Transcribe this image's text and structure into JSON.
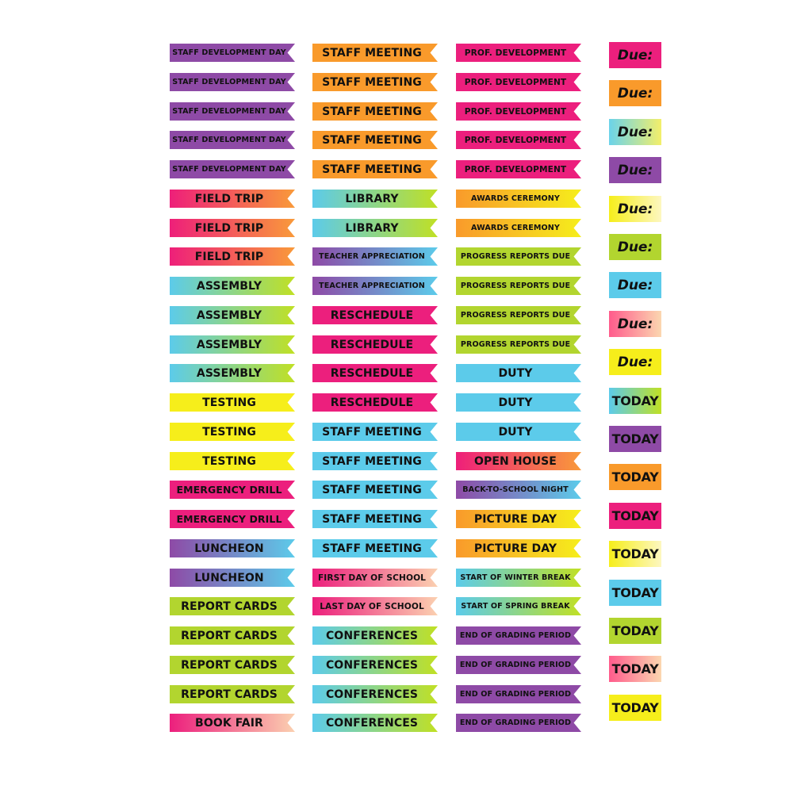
{
  "palette": {
    "purple": "#8e4aa6",
    "orange": "#f99a2b",
    "magenta": "#ec1f7d",
    "cyan": "#5ccbea",
    "yellow": "#f6ee1b",
    "lime": "#b2d52f",
    "pink_orange": "linear-gradient(90deg,#ee1f7a,#f99a3a)",
    "cyan_lime": "linear-gradient(90deg,#5ccbea,#c0e024)",
    "purple_cyan": "linear-gradient(90deg,#8e4aa6,#5ccbea)",
    "orange_yellow": "linear-gradient(90deg,#f99a2b,#f6ee1b)",
    "yellow_white": "linear-gradient(90deg,#f6ee1b,#fdf7c0)",
    "magenta_peach": "linear-gradient(90deg,#ec1f7d,#fbd0b0)",
    "cyan_peach": "linear-gradient(90deg,#5ccbea,#f9d7b5)",
    "lime_cyan": "linear-gradient(90deg,#b2d52f,#7fd8ec)",
    "teal_pink": "linear-gradient(90deg,#5ccbea,#ff5b8c)",
    "purple_white": "linear-gradient(90deg,#8e4aa6,#d9c8e6)",
    "pink_peach_tag": "linear-gradient(90deg,#ff5b8c,#fbd7b0)",
    "cyan_yellow_tag": "linear-gradient(90deg,#6bd3ea,#f3ef6a)"
  },
  "columns": [
    {
      "items": [
        {
          "label": "STAFF DEVELOPMENT DAY",
          "fill": "purple",
          "size": "xs"
        },
        {
          "label": "STAFF DEVELOPMENT DAY",
          "fill": "purple",
          "size": "xs"
        },
        {
          "label": "STAFF DEVELOPMENT DAY",
          "fill": "purple",
          "size": "xs"
        },
        {
          "label": "STAFF DEVELOPMENT DAY",
          "fill": "purple",
          "size": "xs"
        },
        {
          "label": "STAFF DEVELOPMENT DAY",
          "fill": "purple",
          "size": "xs"
        },
        {
          "label": "FIELD TRIP",
          "fill": "pink_orange",
          "size": "l"
        },
        {
          "label": "FIELD TRIP",
          "fill": "pink_orange",
          "size": "l"
        },
        {
          "label": "FIELD TRIP",
          "fill": "pink_orange",
          "size": "l"
        },
        {
          "label": "ASSEMBLY",
          "fill": "cyan_lime",
          "size": "l"
        },
        {
          "label": "ASSEMBLY",
          "fill": "cyan_lime",
          "size": "l"
        },
        {
          "label": "ASSEMBLY",
          "fill": "cyan_lime",
          "size": "l"
        },
        {
          "label": "ASSEMBLY",
          "fill": "cyan_lime",
          "size": "l"
        },
        {
          "label": "TESTING",
          "fill": "yellow",
          "size": "l"
        },
        {
          "label": "TESTING",
          "fill": "yellow",
          "size": "l"
        },
        {
          "label": "TESTING",
          "fill": "yellow",
          "size": "l"
        },
        {
          "label": "EMERGENCY DRILL",
          "fill": "magenta",
          "size": "m"
        },
        {
          "label": "EMERGENCY DRILL",
          "fill": "magenta",
          "size": "m"
        },
        {
          "label": "LUNCHEON",
          "fill": "purple_cyan",
          "size": "l"
        },
        {
          "label": "LUNCHEON",
          "fill": "purple_cyan",
          "size": "l"
        },
        {
          "label": "REPORT CARDS",
          "fill": "lime",
          "size": "l"
        },
        {
          "label": "REPORT CARDS",
          "fill": "lime",
          "size": "l"
        },
        {
          "label": "REPORT CARDS",
          "fill": "lime",
          "size": "l"
        },
        {
          "label": "REPORT CARDS",
          "fill": "lime",
          "size": "l"
        },
        {
          "label": "BOOK FAIR",
          "fill": "magenta_peach",
          "size": "l"
        }
      ]
    },
    {
      "items": [
        {
          "label": "STAFF MEETING",
          "fill": "orange",
          "size": "l"
        },
        {
          "label": "STAFF MEETING",
          "fill": "orange",
          "size": "l"
        },
        {
          "label": "STAFF MEETING",
          "fill": "orange",
          "size": "l"
        },
        {
          "label": "STAFF MEETING",
          "fill": "orange",
          "size": "l"
        },
        {
          "label": "STAFF MEETING",
          "fill": "orange",
          "size": "l"
        },
        {
          "label": "LIBRARY",
          "fill": "cyan_lime",
          "size": "l"
        },
        {
          "label": "LIBRARY",
          "fill": "cyan_lime",
          "size": "l"
        },
        {
          "label": "TEACHER APPRECIATION",
          "fill": "purple_cyan",
          "size": "xs"
        },
        {
          "label": "TEACHER APPRECIATION",
          "fill": "purple_cyan",
          "size": "xs"
        },
        {
          "label": "RESCHEDULE",
          "fill": "magenta",
          "size": "l"
        },
        {
          "label": "RESCHEDULE",
          "fill": "magenta",
          "size": "l"
        },
        {
          "label": "RESCHEDULE",
          "fill": "magenta",
          "size": "l"
        },
        {
          "label": "RESCHEDULE",
          "fill": "magenta",
          "size": "l"
        },
        {
          "label": "STAFF MEETING",
          "fill": "cyan",
          "size": "l"
        },
        {
          "label": "STAFF MEETING",
          "fill": "cyan",
          "size": "l"
        },
        {
          "label": "STAFF MEETING",
          "fill": "cyan",
          "size": "l"
        },
        {
          "label": "STAFF MEETING",
          "fill": "cyan",
          "size": "l"
        },
        {
          "label": "STAFF MEETING",
          "fill": "cyan",
          "size": "l"
        },
        {
          "label": "FIRST DAY OF SCHOOL",
          "fill": "magenta_peach",
          "size": "s"
        },
        {
          "label": "LAST DAY OF SCHOOL",
          "fill": "magenta_peach",
          "size": "s"
        },
        {
          "label": "CONFERENCES",
          "fill": "cyan_lime",
          "size": "l"
        },
        {
          "label": "CONFERENCES",
          "fill": "cyan_lime",
          "size": "l"
        },
        {
          "label": "CONFERENCES",
          "fill": "cyan_lime",
          "size": "l"
        },
        {
          "label": "CONFERENCES",
          "fill": "cyan_lime",
          "size": "l"
        }
      ]
    },
    {
      "items": [
        {
          "label": "PROF. DEVELOPMENT",
          "fill": "magenta",
          "size": "s"
        },
        {
          "label": "PROF. DEVELOPMENT",
          "fill": "magenta",
          "size": "s"
        },
        {
          "label": "PROF. DEVELOPMENT",
          "fill": "magenta",
          "size": "s"
        },
        {
          "label": "PROF. DEVELOPMENT",
          "fill": "magenta",
          "size": "s"
        },
        {
          "label": "PROF. DEVELOPMENT",
          "fill": "magenta",
          "size": "s"
        },
        {
          "label": "AWARDS CEREMONY",
          "fill": "orange_yellow",
          "size": "xs"
        },
        {
          "label": "AWARDS CEREMONY",
          "fill": "orange_yellow",
          "size": "xs"
        },
        {
          "label": "PROGRESS REPORTS DUE",
          "fill": "lime",
          "size": "xs"
        },
        {
          "label": "PROGRESS REPORTS DUE",
          "fill": "lime",
          "size": "xs"
        },
        {
          "label": "PROGRESS REPORTS DUE",
          "fill": "lime",
          "size": "xs"
        },
        {
          "label": "PROGRESS REPORTS DUE",
          "fill": "lime",
          "size": "xs"
        },
        {
          "label": "DUTY",
          "fill": "cyan",
          "size": "l"
        },
        {
          "label": "DUTY",
          "fill": "cyan",
          "size": "l"
        },
        {
          "label": "DUTY",
          "fill": "cyan",
          "size": "l"
        },
        {
          "label": "OPEN HOUSE",
          "fill": "pink_orange",
          "size": "l"
        },
        {
          "label": "BACK-TO-SCHOOL NIGHT",
          "fill": "purple_cyan",
          "size": "xs"
        },
        {
          "label": "PICTURE DAY",
          "fill": "orange_yellow",
          "size": "l"
        },
        {
          "label": "PICTURE DAY",
          "fill": "orange_yellow",
          "size": "l"
        },
        {
          "label": "START OF WINTER BREAK",
          "fill": "cyan_lime",
          "size": "xs"
        },
        {
          "label": "START OF SPRING BREAK",
          "fill": "cyan_lime",
          "size": "xs"
        },
        {
          "label": "END OF GRADING PERIOD",
          "fill": "purple",
          "size": "xs"
        },
        {
          "label": "END OF GRADING PERIOD",
          "fill": "purple",
          "size": "xs"
        },
        {
          "label": "END OF GRADING PERIOD",
          "fill": "purple",
          "size": "xs"
        },
        {
          "label": "END OF GRADING PERIOD",
          "fill": "purple",
          "size": "xs"
        }
      ]
    }
  ],
  "tags": [
    {
      "label": "Due:",
      "kind": "due",
      "fill": "magenta"
    },
    {
      "label": "Due:",
      "kind": "due",
      "fill": "orange"
    },
    {
      "label": "Due:",
      "kind": "due",
      "fill": "cyan_yellow_tag"
    },
    {
      "label": "Due:",
      "kind": "due",
      "fill": "purple"
    },
    {
      "label": "Due:",
      "kind": "due",
      "fill": "yellow_white"
    },
    {
      "label": "Due:",
      "kind": "due",
      "fill": "lime"
    },
    {
      "label": "Due:",
      "kind": "due",
      "fill": "cyan"
    },
    {
      "label": "Due:",
      "kind": "due",
      "fill": "pink_peach_tag"
    },
    {
      "label": "Due:",
      "kind": "due",
      "fill": "yellow"
    },
    {
      "label": "TODAY",
      "kind": "today",
      "fill": "cyan_lime"
    },
    {
      "label": "TODAY",
      "kind": "today",
      "fill": "purple"
    },
    {
      "label": "TODAY",
      "kind": "today",
      "fill": "orange"
    },
    {
      "label": "TODAY",
      "kind": "today",
      "fill": "magenta"
    },
    {
      "label": "TODAY",
      "kind": "today",
      "fill": "yellow_white"
    },
    {
      "label": "TODAY",
      "kind": "today",
      "fill": "cyan"
    },
    {
      "label": "TODAY",
      "kind": "today",
      "fill": "lime"
    },
    {
      "label": "TODAY",
      "kind": "today",
      "fill": "pink_peach_tag"
    },
    {
      "label": "TODAY",
      "kind": "today",
      "fill": "yellow"
    }
  ]
}
